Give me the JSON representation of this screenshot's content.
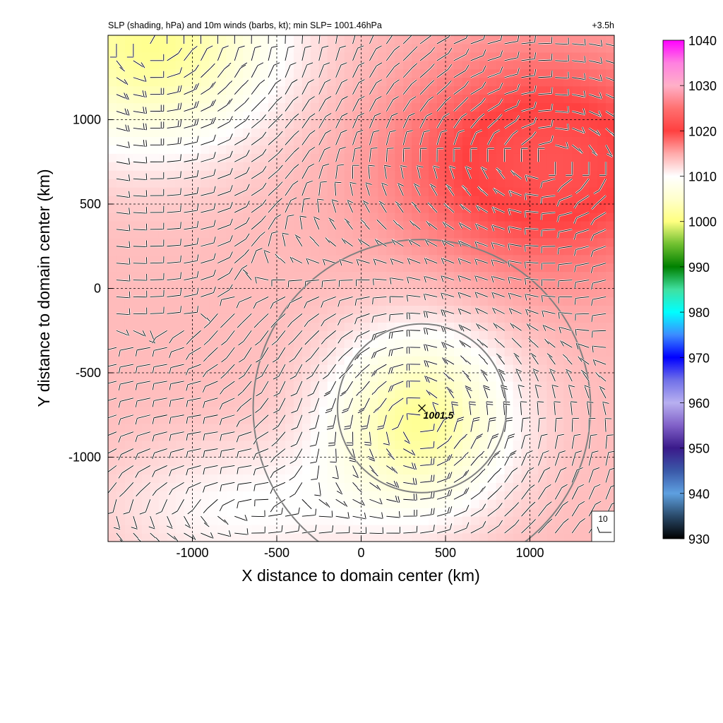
{
  "chart_data": {
    "type": "heatmap",
    "title": "SLP (shading, hPa) and 10m winds (barbs, kt); min SLP= 1001.46hPa",
    "time_label": "+3.5h",
    "xlabel": "X distance to domain center (km)",
    "ylabel": "Y distance to domain center (km)",
    "xlim": [
      -1500,
      1500
    ],
    "ylim": [
      -1500,
      1500
    ],
    "x_ticks": [
      -1000,
      -500,
      0,
      500,
      1000
    ],
    "y_ticks": [
      -1000,
      -500,
      0,
      500,
      1000
    ],
    "x_tick_labels": [
      "-1000",
      "-500",
      "0",
      "500",
      "1000"
    ],
    "y_tick_labels": [
      "-1000",
      "-500",
      "0",
      "500",
      "1000"
    ],
    "grid": true,
    "colorbar": {
      "min": 930,
      "max": 1040,
      "ticks": [
        930,
        940,
        950,
        960,
        970,
        980,
        990,
        1000,
        1010,
        1020,
        1030,
        1040
      ],
      "tick_labels": [
        "930",
        "940",
        "950",
        "960",
        "970",
        "980",
        "990",
        "1000",
        "1010",
        "1020",
        "1030",
        "1040"
      ],
      "colors": [
        {
          "value": 930,
          "color": "#000000"
        },
        {
          "value": 935,
          "color": "#2a4a6a"
        },
        {
          "value": 940,
          "color": "#5ea0e0"
        },
        {
          "value": 945,
          "color": "#3a58a8"
        },
        {
          "value": 950,
          "color": "#3a1a8a"
        },
        {
          "value": 955,
          "color": "#8060c8"
        },
        {
          "value": 960,
          "color": "#b8b0f0"
        },
        {
          "value": 965,
          "color": "#7070e8"
        },
        {
          "value": 970,
          "color": "#0000ff"
        },
        {
          "value": 975,
          "color": "#3c8cff"
        },
        {
          "value": 980,
          "color": "#00ffff"
        },
        {
          "value": 985,
          "color": "#40e0a0"
        },
        {
          "value": 990,
          "color": "#008000"
        },
        {
          "value": 995,
          "color": "#70c030"
        },
        {
          "value": 1000,
          "color": "#ffff80"
        },
        {
          "value": 1005,
          "color": "#ffffcc"
        },
        {
          "value": 1010,
          "color": "#ffffff"
        },
        {
          "value": 1015,
          "color": "#ffaaaa"
        },
        {
          "value": 1020,
          "color": "#ff4040"
        },
        {
          "value": 1025,
          "color": "#ff7070"
        },
        {
          "value": 1030,
          "color": "#ffb0c8"
        },
        {
          "value": 1035,
          "color": "#ff80e0"
        },
        {
          "value": 1040,
          "color": "#ff00ff"
        }
      ]
    },
    "pressure_field": {
      "background": 1014,
      "features": [
        {
          "name": "low",
          "x": 350,
          "y": -780,
          "amplitude": -12.5,
          "rx": 520,
          "ry": 520
        },
        {
          "name": "high-northeast",
          "x": 1100,
          "y": 750,
          "amplitude": 8,
          "rx": 900,
          "ry": 650
        },
        {
          "name": "low-northwest",
          "x": -1250,
          "y": 1450,
          "amplitude": -13,
          "rx": 750,
          "ry": 600
        },
        {
          "name": "ridge-southwest",
          "x": -700,
          "y": -1300,
          "amplitude": -4,
          "rx": 800,
          "ry": 400
        }
      ]
    },
    "minimum": {
      "x": 360,
      "y": -710,
      "label": "1001.5",
      "value": 1001.46
    },
    "range_rings_km": [
      500,
      1000
    ],
    "reference_barb_label": "10",
    "colors": {
      "ring": "#808080",
      "grid": "#000000",
      "barb": "#000000"
    }
  }
}
